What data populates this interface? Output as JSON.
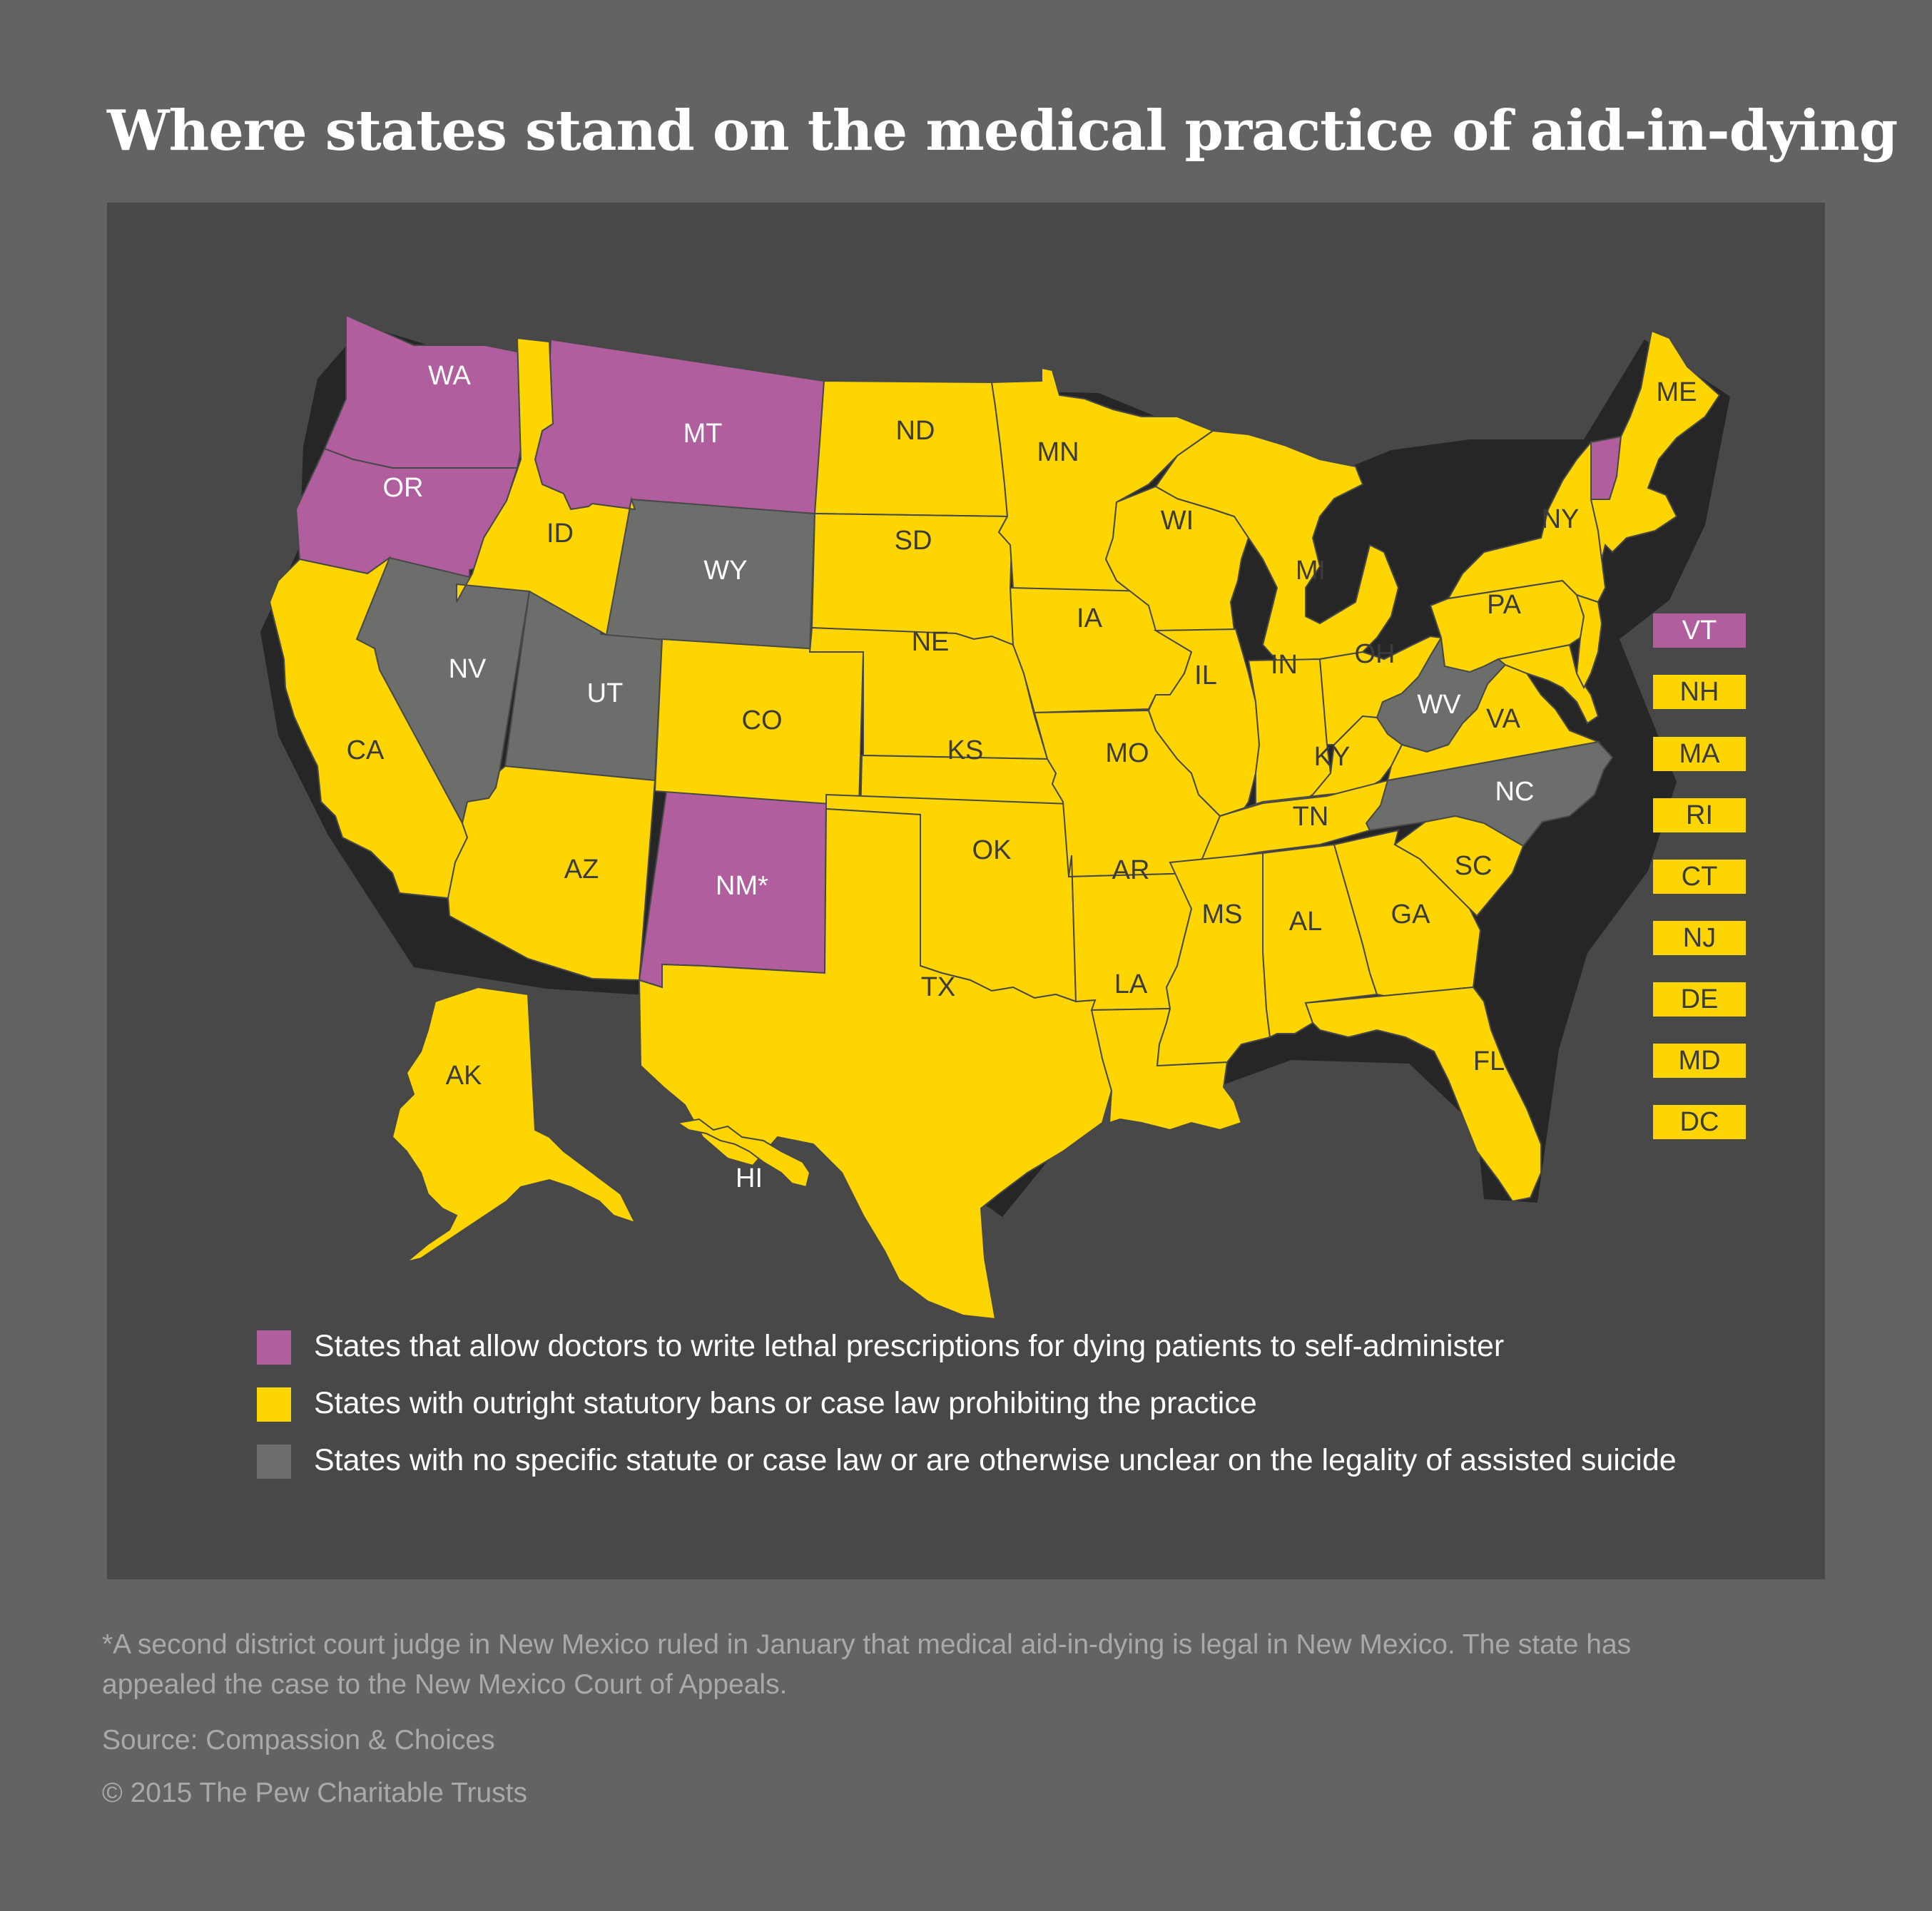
{
  "title": "Where states stand on the medical practice of aid-in-dying",
  "colors": {
    "allow": "#b05e9e",
    "ban": "#ffd500",
    "unclear": "#6c6e6c",
    "panel": "#474847",
    "background": "#626462"
  },
  "state_labels": {
    "WA": "WA",
    "OR": "OR",
    "CA": "CA",
    "NV": "NV",
    "ID": "ID",
    "MT": "MT",
    "WY": "WY",
    "UT": "UT",
    "AZ": "AZ",
    "CO": "CO",
    "NM": "NM*",
    "ND": "ND",
    "SD": "SD",
    "NE": "NE",
    "KS": "KS",
    "OK": "OK",
    "TX": "TX",
    "MN": "MN",
    "IA": "IA",
    "MO": "MO",
    "AR": "AR",
    "LA": "LA",
    "WI": "WI",
    "IL": "IL",
    "MI": "MI",
    "IN": "IN",
    "OH": "OH",
    "KY": "KY",
    "TN": "TN",
    "MS": "MS",
    "AL": "AL",
    "GA": "GA",
    "FL": "FL",
    "SC": "SC",
    "NC": "NC",
    "VA": "VA",
    "WV": "WV",
    "PA": "PA",
    "NY": "NY",
    "ME": "ME",
    "AK": "AK",
    "HI": "HI"
  },
  "side_keys": {
    "VT": "VT",
    "NH": "NH",
    "MA": "MA",
    "RI": "RI",
    "CT": "CT",
    "NJ": "NJ",
    "DE": "DE",
    "MD": "MD",
    "DC": "DC"
  },
  "legend": {
    "allow": "States that allow doctors to write lethal prescriptions for dying patients to self-administer",
    "ban": "States with outright statutory bans or case law prohibiting the practice",
    "unclear": "States with no specific statute or case law or are otherwise unclear on the legality of assisted suicide"
  },
  "footnote_line1": "*A second district court judge in New Mexico ruled in January that medical aid-in-dying is legal in New Mexico. The state has",
  "footnote_line2": "appealed the case to the New Mexico Court of Appeals.",
  "source": "Source: Compassion & Choices",
  "copyright": "© 2015 The Pew Charitable Trusts"
}
